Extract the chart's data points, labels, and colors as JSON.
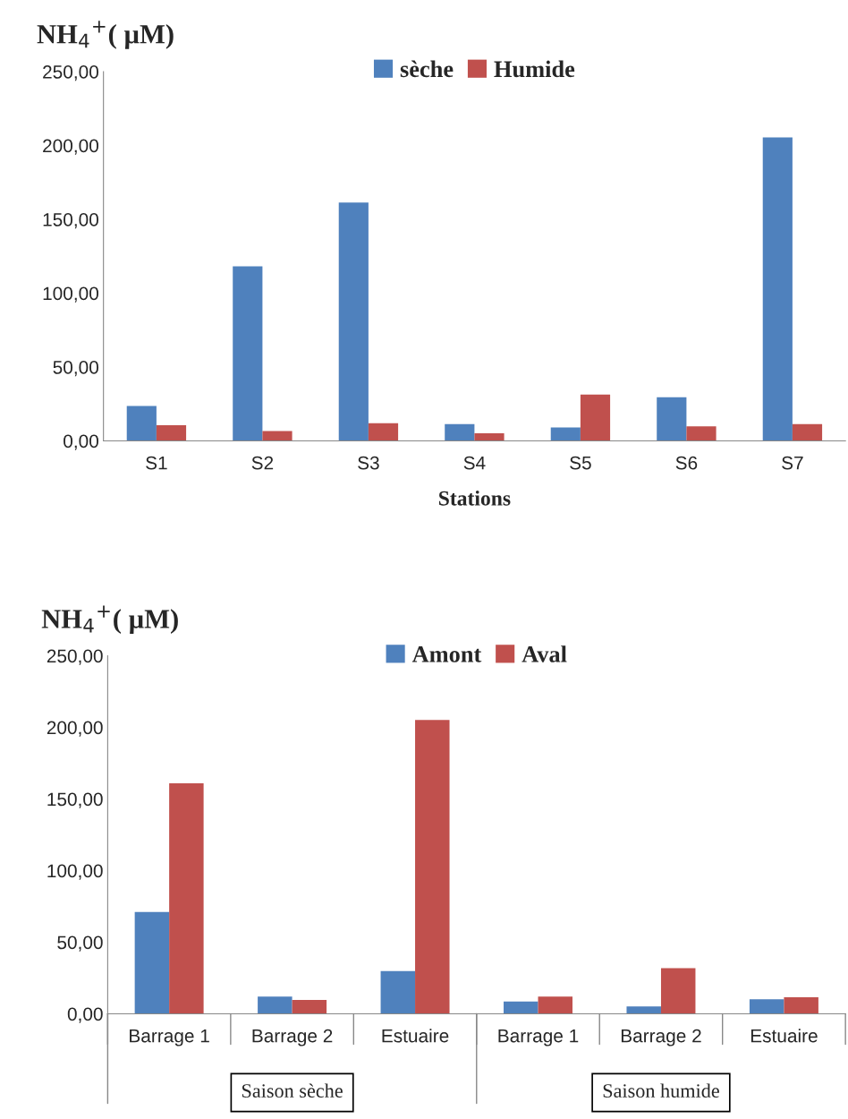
{
  "chart_data": [
    {
      "type": "bar",
      "ylabel": "NH$_{4}$$^{+}$( µM)",
      "xlabel": "Stations",
      "categories": [
        "S1",
        "S2",
        "S3",
        "S4",
        "S5",
        "S6",
        "S7"
      ],
      "series": [
        {
          "name": "sèche",
          "color": "#4f81bd",
          "values": [
            23.7,
            118.2,
            161.3,
            11.3,
            9.1,
            29.6,
            205.5
          ]
        },
        {
          "name": "Humide",
          "color": "#c0504d",
          "values": [
            10.6,
            6.6,
            12.0,
            5.1,
            31.4,
            9.9,
            11.3
          ]
        }
      ],
      "ylim": [
        0,
        250
      ],
      "yticks": [
        {
          "value": 0,
          "label": "0,00"
        },
        {
          "value": 50,
          "label": "50,00"
        },
        {
          "value": 100,
          "label": "100,00"
        },
        {
          "value": 150,
          "label": "150,00"
        },
        {
          "value": 200,
          "label": "200,00"
        },
        {
          "value": 250,
          "label": "250,00"
        }
      ],
      "grid": false,
      "legend": "top"
    },
    {
      "type": "bar",
      "ylabel": "NH$_{4}$$^{+}$( µM)",
      "categories": [
        "Barrage 1",
        "Barrage 2",
        "Estuaire",
        "Barrage 1",
        "Barrage 2",
        "Estuaire"
      ],
      "series": [
        {
          "name": "Amont",
          "color": "#4f81bd",
          "values": [
            71.1,
            12.0,
            29.9,
            8.6,
            5.2,
            10.1
          ]
        },
        {
          "name": "Aval",
          "color": "#c0504d",
          "values": [
            160.9,
            9.7,
            205.1,
            12.0,
            31.8,
            11.6
          ]
        }
      ],
      "ylim": [
        0,
        250
      ],
      "yticks": [
        {
          "value": 0,
          "label": "0,00"
        },
        {
          "value": 50,
          "label": "50,00"
        },
        {
          "value": 100,
          "label": "100,00"
        },
        {
          "value": 150,
          "label": "150,00"
        },
        {
          "value": 200,
          "label": "200,00"
        },
        {
          "value": 250,
          "label": "250,00"
        }
      ],
      "annotations": [
        "Saison sèche",
        "Saison humide"
      ],
      "grid": false,
      "legend": "top"
    }
  ]
}
